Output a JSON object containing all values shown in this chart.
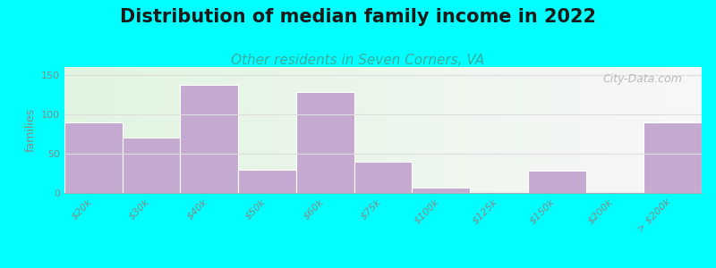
{
  "title": "Distribution of median family income in 2022",
  "subtitle": "Other residents in Seven Corners, VA",
  "ylabel": "families",
  "categories": [
    "$20k",
    "$30k",
    "$40k",
    "$50k",
    "$60k",
    "$75k",
    "$100k",
    "$125k",
    "$150k",
    "$200k",
    "> $200k"
  ],
  "values": [
    90,
    70,
    137,
    30,
    128,
    40,
    7,
    0,
    28,
    0,
    90
  ],
  "bar_color": "#c4aad0",
  "background_color": "#00ffff",
  "title_fontsize": 15,
  "subtitle_fontsize": 11,
  "ylabel_fontsize": 9,
  "tick_label_fontsize": 8,
  "ylim": [
    0,
    160
  ],
  "yticks": [
    0,
    50,
    100,
    150
  ],
  "watermark": "City-Data.com",
  "title_color": "#1a1a1a",
  "subtitle_color": "#3aada0",
  "grid_color": "#dddddd",
  "tick_color": "#888888"
}
